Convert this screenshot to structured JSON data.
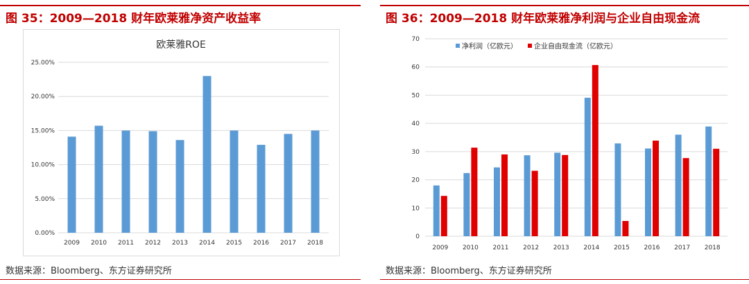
{
  "left": {
    "figure_title": "图 35：2009—2018 财年欧莱雅净资产收益率",
    "source": "数据来源：Bloomberg、东方证券研究所"
  },
  "right": {
    "figure_title": "图 36：2009—2018 财年欧莱雅净利润与企业自由现金流",
    "source": "数据来源：Bloomberg、东方证券研究所"
  },
  "colors": {
    "accent": "#c00000",
    "blue": "#5b9bd5",
    "red": "#e00000",
    "grid": "#d9d9d9"
  },
  "chart_data": [
    {
      "type": "bar",
      "title": "欧莱雅ROE",
      "categories": [
        "2009",
        "2010",
        "2011",
        "2012",
        "2013",
        "2014",
        "2015",
        "2016",
        "2017",
        "2018"
      ],
      "values": [
        14.1,
        15.7,
        15.0,
        14.9,
        13.6,
        23.0,
        15.0,
        12.9,
        14.5,
        15.0
      ],
      "ylim": [
        0,
        25
      ],
      "yticks": [
        "0.00%",
        "5.00%",
        "10.00%",
        "15.00%",
        "20.00%",
        "25.00%"
      ],
      "xlabel": "",
      "ylabel": "",
      "grid": true
    },
    {
      "type": "bar",
      "title": "",
      "categories": [
        "2009",
        "2010",
        "2011",
        "2012",
        "2013",
        "2014",
        "2015",
        "2016",
        "2017",
        "2018"
      ],
      "series": [
        {
          "name": "净利润（亿欧元）",
          "values": [
            18.0,
            22.4,
            24.4,
            28.7,
            29.6,
            49.1,
            32.9,
            31.1,
            36.0,
            38.9
          ]
        },
        {
          "name": "企业自由现金流（亿欧元）",
          "values": [
            14.3,
            31.4,
            29.0,
            23.2,
            28.8,
            60.7,
            5.4,
            33.9,
            27.7,
            31.0
          ]
        }
      ],
      "ylim": [
        0,
        70
      ],
      "yticks": [
        "0",
        "10",
        "20",
        "30",
        "40",
        "50",
        "60",
        "70"
      ],
      "legend": "top-left",
      "xlabel": "",
      "ylabel": "",
      "grid": true
    }
  ]
}
